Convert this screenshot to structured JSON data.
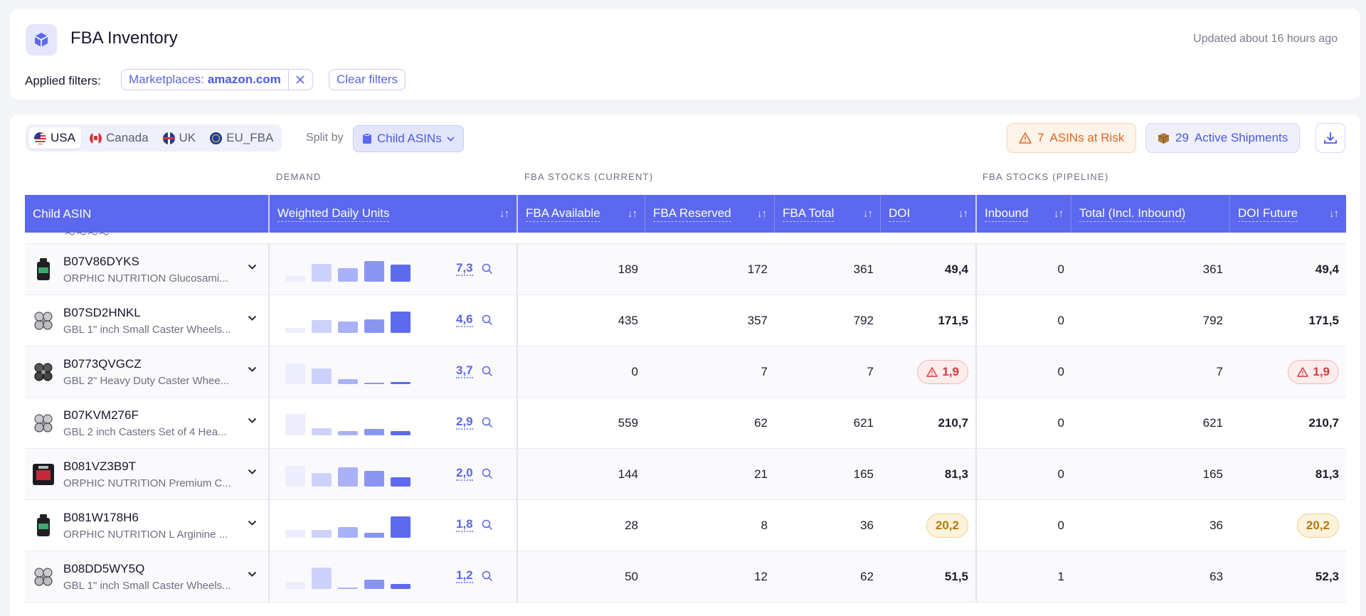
{
  "header": {
    "title": "FBA Inventory",
    "updated": "Updated about 16 hours ago",
    "filters_label": "Applied filters:",
    "filter_chip_key": "Marketplaces:",
    "filter_chip_value": "amazon.com",
    "clear_filters": "Clear filters"
  },
  "toolbar": {
    "marketplaces": [
      {
        "label": "USA",
        "flag": "flag-us",
        "active": true
      },
      {
        "label": "Canada",
        "flag": "flag-ca",
        "active": false
      },
      {
        "label": "UK",
        "flag": "flag-uk",
        "active": false
      },
      {
        "label": "EU_FBA",
        "flag": "flag-eu",
        "active": false
      }
    ],
    "split_label": "Split by",
    "split_value": "Child ASINs",
    "risk_count": "7",
    "risk_label": "ASINs at Risk",
    "shipments_count": "29",
    "shipments_label": "Active Shipments"
  },
  "groups": {
    "demand": "DEMAND",
    "current": "FBA STOCKS (CURRENT)",
    "pipeline": "FBA STOCKS (PIPELINE)"
  },
  "columns": {
    "asin": "Child ASIN",
    "wdu": "Weighted Daily Units",
    "available": "FBA Available",
    "reserved": "FBA Reserved",
    "total": "FBA Total",
    "doi": "DOI",
    "inbound": "Inbound",
    "total_inbound": "Total (Incl. Inbound)",
    "doi_future": "DOI Future"
  },
  "colors": {
    "header_bg": "#5b68ef",
    "accent": "#4b58e6",
    "risk": "#e0661e"
  },
  "rows": [
    {
      "asin": "B07V86DYKS",
      "title": "ORPHIC NUTRITION Glucosami...",
      "thumb": "bottle-dark",
      "bars": [
        0.2,
        0.62,
        0.48,
        0.72,
        0.6
      ],
      "units": "7,3",
      "available": "189",
      "reserved": "172",
      "total": "361",
      "doi": "49,4",
      "doi_status": "normal",
      "inbound": "0",
      "total_inbound": "361",
      "doi_future": "49,4",
      "doi_future_status": "normal"
    },
    {
      "asin": "B07SD2HNKL",
      "title": "GBL 1\" inch Small Caster Wheels...",
      "thumb": "caster",
      "bars": [
        0.18,
        0.45,
        0.4,
        0.48,
        0.75
      ],
      "units": "4,6",
      "available": "435",
      "reserved": "357",
      "total": "792",
      "doi": "171,5",
      "doi_status": "normal",
      "inbound": "0",
      "total_inbound": "792",
      "doi_future": "171,5",
      "doi_future_status": "normal"
    },
    {
      "asin": "B0773QVGCZ",
      "title": "GBL 2\" Heavy Duty Caster Whee...",
      "thumb": "caster-dark",
      "bars": [
        0.72,
        0.55,
        0.18,
        0.06,
        0.07
      ],
      "units": "3,7",
      "available": "0",
      "reserved": "7",
      "total": "7",
      "doi": "1,9",
      "doi_status": "critical",
      "inbound": "0",
      "total_inbound": "7",
      "doi_future": "1,9",
      "doi_future_status": "critical"
    },
    {
      "asin": "B07KVM276F",
      "title": "GBL 2 inch Casters Set of 4 Hea...",
      "thumb": "caster",
      "bars": [
        0.75,
        0.25,
        0.16,
        0.22,
        0.14
      ],
      "units": "2,9",
      "available": "559",
      "reserved": "62",
      "total": "621",
      "doi": "210,7",
      "doi_status": "normal",
      "inbound": "0",
      "total_inbound": "621",
      "doi_future": "210,7",
      "doi_future_status": "normal"
    },
    {
      "asin": "B081VZ3B9T",
      "title": "ORPHIC NUTRITION Premium C...",
      "thumb": "box-red",
      "bars": [
        0.72,
        0.48,
        0.68,
        0.55,
        0.32
      ],
      "units": "2,0",
      "available": "144",
      "reserved": "21",
      "total": "165",
      "doi": "81,3",
      "doi_status": "normal",
      "inbound": "0",
      "total_inbound": "165",
      "doi_future": "81,3",
      "doi_future_status": "normal"
    },
    {
      "asin": "B081W178H6",
      "title": "ORPHIC NUTRITION L Arginine ...",
      "thumb": "bottle-dark",
      "bars": [
        0.28,
        0.28,
        0.38,
        0.17,
        0.75
      ],
      "units": "1,8",
      "available": "28",
      "reserved": "8",
      "total": "36",
      "doi": "20,2",
      "doi_status": "warning",
      "inbound": "0",
      "total_inbound": "36",
      "doi_future": "20,2",
      "doi_future_status": "warning"
    },
    {
      "asin": "B08DD5WY5Q",
      "title": "GBL 1\" inch Small Caster Wheels...",
      "thumb": "caster",
      "bars": [
        0.25,
        0.75,
        0.05,
        0.33,
        0.18
      ],
      "units": "1,2",
      "available": "50",
      "reserved": "12",
      "total": "62",
      "doi": "51,5",
      "doi_status": "normal",
      "inbound": "1",
      "total_inbound": "63",
      "doi_future": "52,3",
      "doi_future_status": "normal"
    }
  ]
}
